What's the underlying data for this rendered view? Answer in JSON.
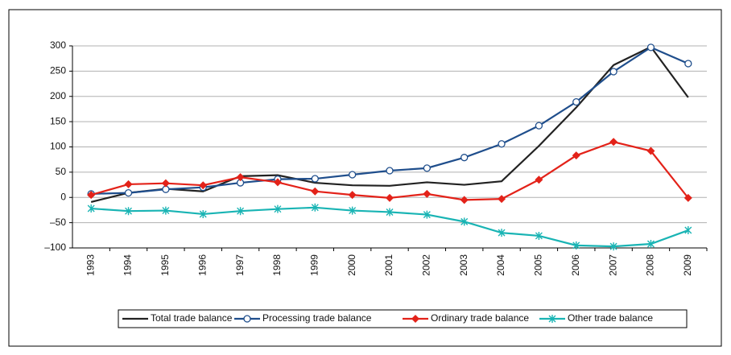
{
  "chart_data": {
    "type": "line",
    "categories": [
      "1993",
      "1994",
      "1995",
      "1996",
      "1997",
      "1998",
      "1999",
      "2000",
      "2001",
      "2002",
      "2003",
      "2004",
      "2005",
      "2006",
      "2007",
      "2008",
      "2009"
    ],
    "series": [
      {
        "name": "Total trade balance",
        "color": "#222222",
        "marker": "none",
        "values": [
          -9,
          9,
          17,
          12,
          42,
          44,
          29,
          24,
          23,
          30,
          25,
          32,
          102,
          178,
          262,
          298,
          198
        ]
      },
      {
        "name": "Processing trade balance",
        "color": "#1f4e8c",
        "marker": "circle",
        "values": [
          7,
          9,
          16,
          20,
          29,
          36,
          37,
          45,
          53,
          58,
          79,
          106,
          142,
          189,
          249,
          297,
          265
        ]
      },
      {
        "name": "Ordinary trade balance",
        "color": "#e32219",
        "marker": "diamond",
        "values": [
          5,
          26,
          28,
          24,
          40,
          30,
          12,
          5,
          -1,
          7,
          -5,
          -3,
          35,
          83,
          110,
          92,
          -1
        ]
      },
      {
        "name": "Other trade balance",
        "color": "#19b4b4",
        "marker": "star",
        "values": [
          -22,
          -27,
          -26,
          -33,
          -27,
          -23,
          -20,
          -26,
          -29,
          -34,
          -48,
          -70,
          -76,
          -95,
          -97,
          -92,
          -65
        ]
      }
    ],
    "ylim": [
      -100,
      300
    ],
    "yticks": [
      {
        "value": -100,
        "label": "–100"
      },
      {
        "value": -50,
        "label": "–50"
      },
      0,
      50,
      100,
      150,
      200,
      250,
      300
    ],
    "grid": true,
    "legend": "bottom"
  }
}
